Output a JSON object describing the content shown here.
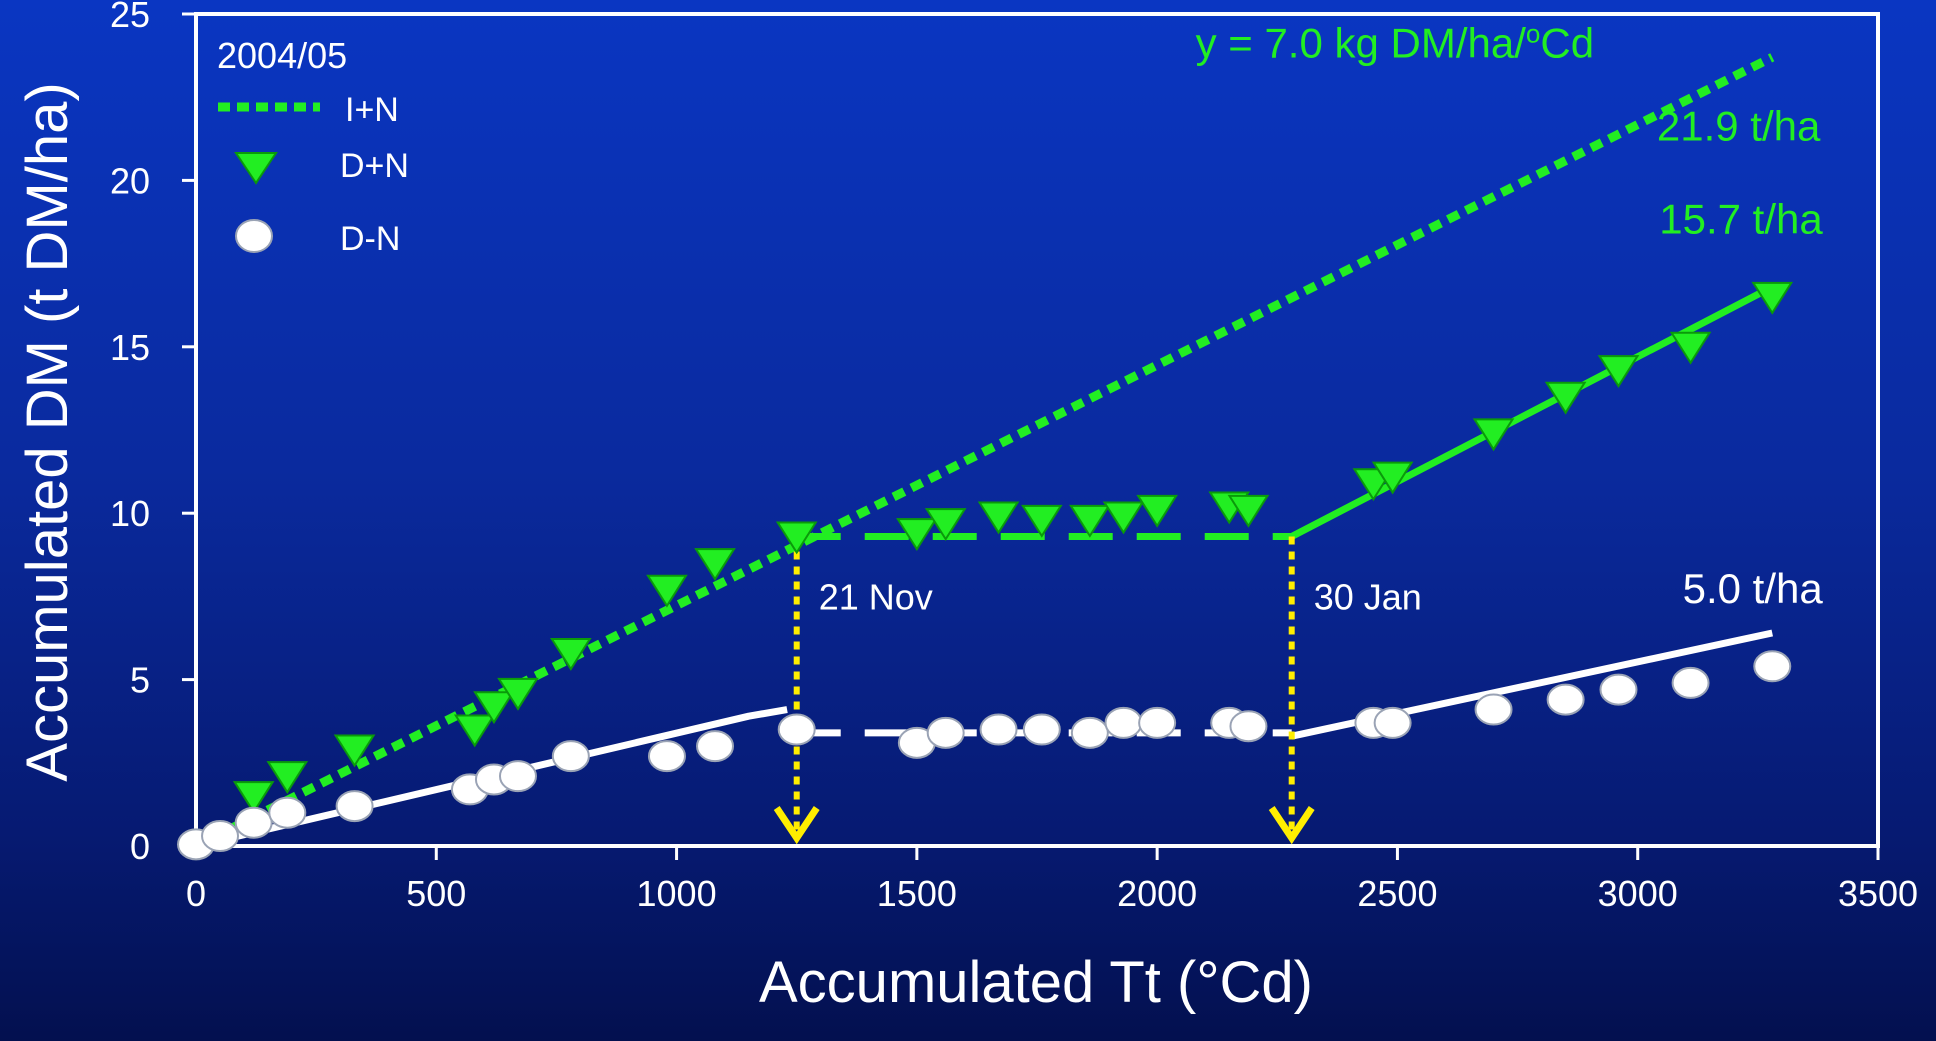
{
  "chart_data": {
    "type": "scatter",
    "title": "",
    "xlabel": "Accumulated Tt (°Cd)",
    "ylabel": "Accumulated DM (t DM/ha)",
    "xlim": [
      0,
      3500
    ],
    "ylim": [
      0,
      25
    ],
    "x_ticks": [
      0,
      500,
      1000,
      1500,
      2000,
      2500,
      3000,
      3500
    ],
    "y_ticks": [
      0,
      5,
      10,
      15,
      20,
      25
    ],
    "grid": false,
    "legend_position": "top-left",
    "legend_title": "2004/05",
    "colors": {
      "green": "#22ee22",
      "white": "#ffffff",
      "yellow": "#ffee00"
    },
    "series": [
      {
        "name": "I+N",
        "kind": "line",
        "style": "dotted",
        "color": "#22ee22",
        "x": [
          0,
          3280
        ],
        "y": [
          0,
          23.7
        ]
      },
      {
        "name": "D+N",
        "kind": "scatter",
        "marker": "triangle-down",
        "color": "#22ee22",
        "x": [
          120,
          190,
          330,
          580,
          620,
          670,
          780,
          980,
          1080,
          1250,
          1500,
          1560,
          1670,
          1760,
          1860,
          1930,
          2000,
          2150,
          2190,
          2450,
          2490,
          2700,
          2850,
          2960,
          3110,
          3280
        ],
        "y": [
          1.5,
          2.1,
          2.9,
          3.5,
          4.2,
          4.6,
          5.8,
          7.7,
          8.5,
          9.3,
          9.4,
          9.7,
          9.9,
          9.8,
          9.8,
          9.9,
          10.1,
          10.2,
          10.1,
          10.9,
          11.1,
          12.4,
          13.5,
          14.3,
          15.0,
          16.5
        ]
      },
      {
        "name": "D-N",
        "kind": "scatter",
        "marker": "circle",
        "color": "#ffffff",
        "x": [
          0,
          50,
          120,
          190,
          330,
          570,
          620,
          670,
          780,
          980,
          1080,
          1250,
          1500,
          1560,
          1670,
          1760,
          1860,
          1930,
          2000,
          2150,
          2190,
          2450,
          2490,
          2700,
          2850,
          2960,
          3110,
          3280
        ],
        "y": [
          0.05,
          0.3,
          0.7,
          1.0,
          1.2,
          1.7,
          2.0,
          2.1,
          2.7,
          2.7,
          3.0,
          3.5,
          3.1,
          3.4,
          3.5,
          3.5,
          3.4,
          3.7,
          3.7,
          3.7,
          3.6,
          3.7,
          3.7,
          4.1,
          4.4,
          4.7,
          4.9,
          5.4
        ]
      }
    ],
    "fit_lines": [
      {
        "color": "#22ee22",
        "style": "solid",
        "x": [
          2280,
          3280
        ],
        "y": [
          9.3,
          16.8
        ]
      },
      {
        "color": "#22ee22",
        "style": "dashed",
        "x": [
          1250,
          2280
        ],
        "y": [
          9.3,
          9.3
        ]
      },
      {
        "color": "#ffffff",
        "style": "solid",
        "x": [
          0,
          1150,
          1230
        ],
        "y": [
          0,
          3.9,
          4.1
        ]
      },
      {
        "color": "#ffffff",
        "style": "dashed",
        "x": [
          1250,
          2280
        ],
        "y": [
          3.4,
          3.4
        ]
      },
      {
        "color": "#ffffff",
        "style": "solid",
        "x": [
          2280,
          3280
        ],
        "y": [
          3.3,
          6.4
        ]
      }
    ],
    "arrows": [
      {
        "x": 1250,
        "y_from": 9.3,
        "y_to": 0,
        "label": "21 Nov",
        "color": "#ffee00"
      },
      {
        "x": 2280,
        "y_from": 9.3,
        "y_to": 0,
        "label": "30 Jan",
        "color": "#ffee00"
      }
    ],
    "annotations": [
      {
        "text": "y = 7.0 kg DM/ha/",
        "superscript": "o",
        "suffix": "Cd",
        "color": "#22ee22",
        "x": 2080,
        "y": 23.7
      },
      {
        "text": "21.9 t/ha",
        "color": "#22ee22",
        "x": 3380,
        "y": 21.2
      },
      {
        "text": "15.7 t/ha",
        "color": "#22ee22",
        "x": 3385,
        "y": 18.4
      },
      {
        "text": "5.0 t/ha",
        "color": "#ffffff",
        "x": 3385,
        "y": 7.3
      }
    ]
  }
}
